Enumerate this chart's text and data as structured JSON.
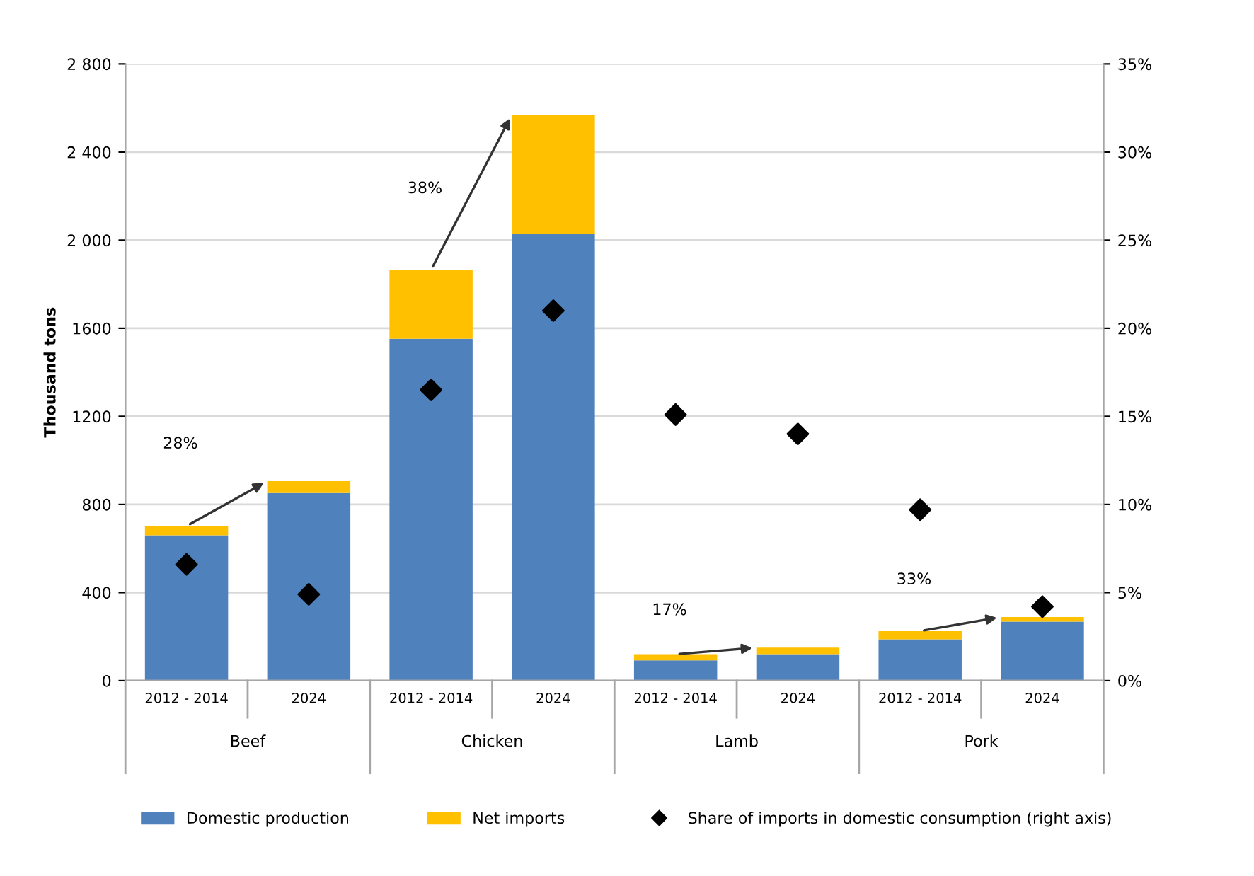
{
  "chart_data": {
    "type": "bar",
    "stacked": true,
    "ylabel": "Thousand tons",
    "categories": [
      "2012 - 2014",
      "2024",
      "2012 - 2014",
      "2024",
      "2012 - 2014",
      "2024",
      "2012 - 2014",
      "2024"
    ],
    "series": [
      {
        "name": "Domestic production",
        "color": "#4f81bd",
        "values": [
          660,
          852,
          1552,
          2030,
          92,
          120,
          188,
          268
        ]
      },
      {
        "name": "Net imports",
        "color": "#ffc000",
        "values": [
          42,
          54,
          313,
          539,
          28,
          30,
          37,
          21
        ]
      },
      {
        "name": "Share of imports in domestic consumption (right axis)",
        "type": "scatter",
        "axis": "y2",
        "marker": "diamond",
        "color": "#000000",
        "values": [
          6.6,
          4.9,
          16.5,
          21.0,
          15.1,
          14.0,
          9.7,
          4.2
        ]
      }
    ],
    "ylim": [
      0,
      2800
    ],
    "yticks": [
      0,
      400,
      800,
      1200,
      1600,
      {
        "value": 2000,
        "label": "2 000"
      },
      {
        "value": 2400,
        "label": "2 400"
      },
      {
        "value": 2800,
        "label": "2 800"
      }
    ],
    "y2lim": [
      0,
      35
    ],
    "y2ticks": [
      {
        "value": 0,
        "label": "0%"
      },
      {
        "value": 5,
        "label": "5%"
      },
      {
        "value": 10,
        "label": "10%"
      },
      {
        "value": 15,
        "label": "15%"
      },
      {
        "value": 20,
        "label": "20%"
      },
      {
        "value": 25,
        "label": "25%"
      },
      {
        "value": 30,
        "label": "30%"
      },
      {
        "value": 35,
        "label": "35%"
      }
    ],
    "annotations": [
      "28%",
      "38%",
      "17%",
      "33%",
      "Beef",
      "Chicken",
      "Lamb",
      "Pork"
    ],
    "grid": "y",
    "legend": "bottom"
  }
}
